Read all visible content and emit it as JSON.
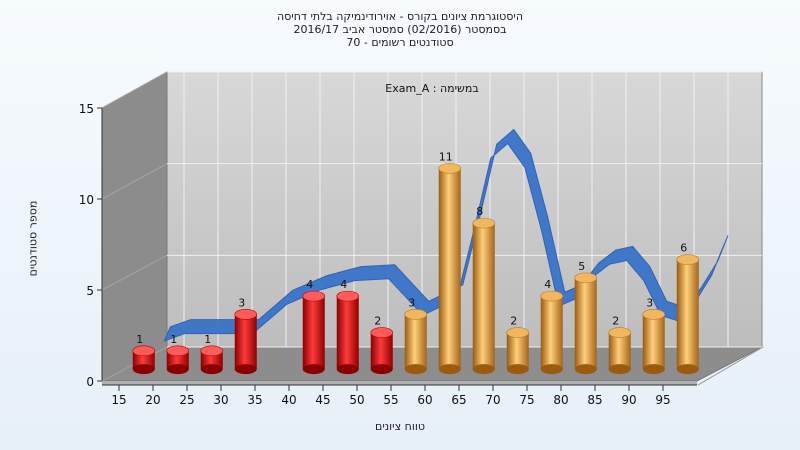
{
  "chart_data": {
    "type": "bar",
    "title": [
      "היסטוגרמת ציונים בקורס - אוירודינמיקה בלתי דחיסה",
      "בסמסטר  (02/2016)  סמסטר אביב 2016/17",
      "סטודנטים רשומים - 70"
    ],
    "subtitle": "Exam_A : במשימה",
    "xlabel": "טווח ציונים",
    "ylabel": "מספר סטודנטים",
    "x_tick_labels": [
      "15",
      "20",
      "25",
      "30",
      "35",
      "40",
      "45",
      "50",
      "55",
      "60",
      "65",
      "70",
      "75",
      "80",
      "85",
      "90",
      "95"
    ],
    "y_tick_labels": [
      "0",
      "5",
      "10",
      "15"
    ],
    "ylim": [
      0,
      15
    ],
    "categories": [
      15,
      20,
      25,
      30,
      40,
      45,
      50,
      55,
      60,
      65,
      70,
      75,
      80,
      85,
      90,
      95
    ],
    "values": [
      1,
      1,
      1,
      3,
      4,
      4,
      2,
      3,
      11,
      8,
      2,
      4,
      5,
      2,
      3,
      6
    ],
    "colors": [
      "red",
      "red",
      "red",
      "red",
      "red",
      "red",
      "red",
      "orange",
      "orange",
      "orange",
      "orange",
      "orange",
      "orange",
      "orange",
      "orange",
      "orange"
    ],
    "trend_line": {
      "x": [
        17,
        20,
        25,
        30,
        35,
        40,
        45,
        50,
        55,
        60,
        62.5,
        65,
        67.5,
        70,
        72.5,
        75,
        77.5,
        80,
        82.5,
        85,
        87.5,
        90,
        92.5,
        95,
        97.5,
        99
      ],
      "y": [
        1.5,
        1.9,
        1.9,
        1.9,
        3.5,
        4.3,
        4.8,
        4.9,
        2.9,
        3.8,
        7.5,
        11.5,
        12.3,
        11.0,
        7.5,
        3.4,
        3.8,
        5.0,
        5.7,
        5.9,
        4.8,
        2.9,
        2.6,
        3.6,
        5.1,
        6.5
      ]
    },
    "grid": true,
    "colors_hex": {
      "red": "#e21b1b",
      "orange": "#e69b33",
      "trend": "#3a73c9",
      "plot_bg": "#c4c4c4",
      "side_wall": "#8c8c8c"
    }
  }
}
